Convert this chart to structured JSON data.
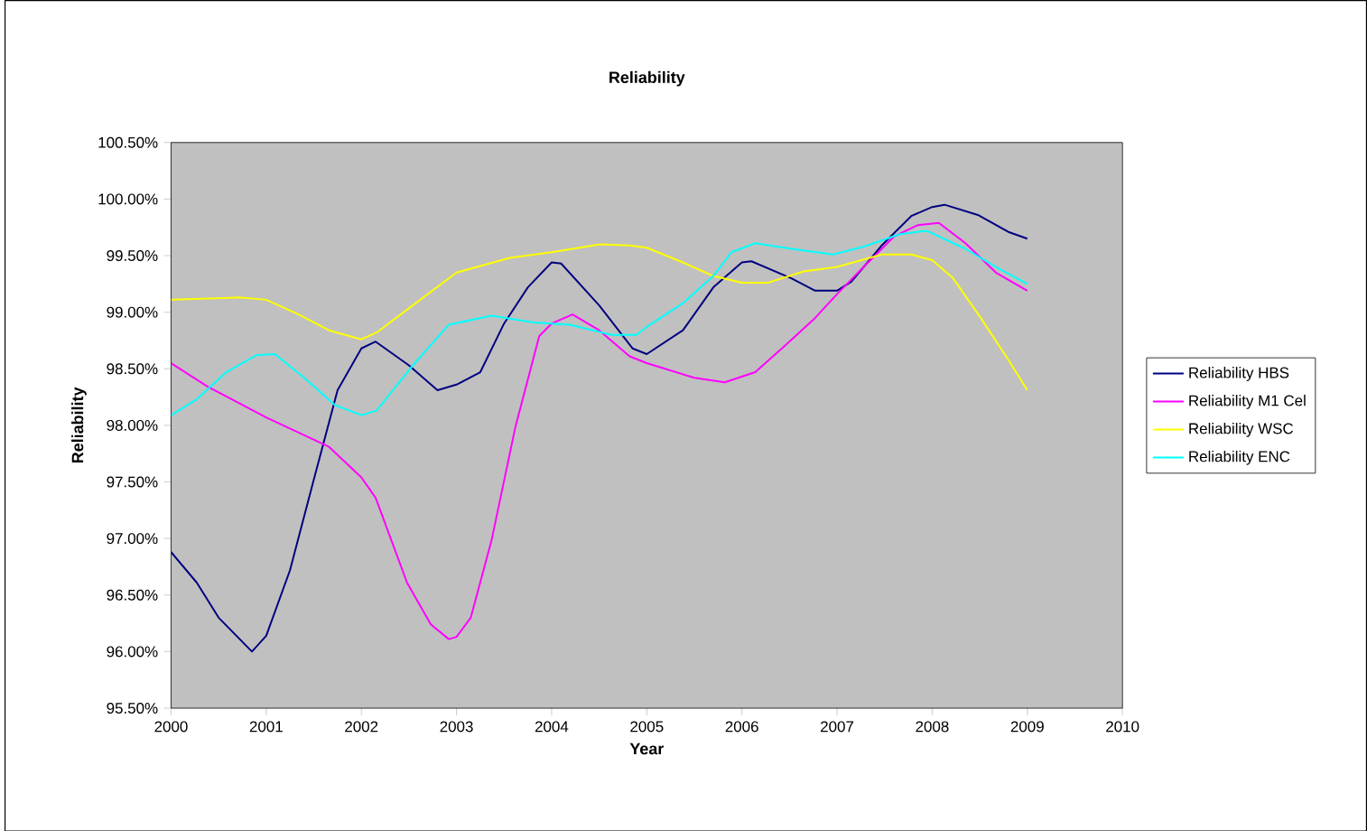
{
  "chart_data": {
    "type": "line",
    "title": "Reliability",
    "xlabel": "Year",
    "ylabel": "Reliability",
    "xlim": [
      2000,
      2010
    ],
    "xticks": [
      2000,
      2001,
      2002,
      2003,
      2004,
      2005,
      2006,
      2007,
      2008,
      2009,
      2010
    ],
    "ylim": [
      95.5,
      100.5
    ],
    "yticks": [
      {
        "value": 95.5,
        "label": "95.50%"
      },
      {
        "value": 96,
        "label": "96.00%"
      },
      {
        "value": 96.5,
        "label": "96.50%"
      },
      {
        "value": 97,
        "label": "97.00%"
      },
      {
        "value": 97.5,
        "label": "97.50%"
      },
      {
        "value": 98,
        "label": "98.00%"
      },
      {
        "value": 98.5,
        "label": "98.50%"
      },
      {
        "value": 99,
        "label": "99.00%"
      },
      {
        "value": 99.5,
        "label": "99.50%"
      },
      {
        "value": 100,
        "label": "100.00%"
      },
      {
        "value": 100.5,
        "label": "100.50%"
      }
    ],
    "grid": false,
    "legend": "right",
    "marker": "none",
    "line_style": "solid",
    "series": [
      {
        "name": "Reliability HBS",
        "color": "#000080",
        "x": [
          2000,
          2000.27,
          2000.5,
          2000.85,
          2001,
          2001.25,
          2001.5,
          2001.75,
          2002,
          2002.15,
          2002.5,
          2002.8,
          2003,
          2003.25,
          2003.5,
          2003.75,
          2004,
          2004.1,
          2004.5,
          2004.85,
          2005,
          2005.38,
          2005.7,
          2006,
          2006.1,
          2006.52,
          2006.77,
          2007,
          2007.15,
          2007.47,
          2007.78,
          2008,
          2008.13,
          2008.48,
          2008.8,
          2009
        ],
        "values": [
          96.88,
          96.61,
          96.3,
          96.0,
          96.14,
          96.72,
          97.52,
          98.31,
          98.68,
          98.74,
          98.53,
          98.31,
          98.36,
          98.47,
          98.9,
          99.22,
          99.44,
          99.43,
          99.06,
          98.68,
          98.63,
          98.84,
          99.22,
          99.44,
          99.45,
          99.3,
          99.19,
          99.19,
          99.27,
          99.59,
          99.85,
          99.93,
          99.95,
          99.86,
          99.71,
          99.65
        ]
      },
      {
        "name": "Reliability M1 Cel",
        "color": "#ff00ff",
        "x": [
          2000,
          2000.39,
          2001,
          2001.66,
          2002,
          2002.15,
          2002.48,
          2002.73,
          2002.92,
          2003,
          2003.15,
          2003.37,
          2003.62,
          2003.87,
          2004,
          2004.22,
          2004.5,
          2004.82,
          2005,
          2005.5,
          2005.82,
          2006.14,
          2006.46,
          2006.77,
          2007,
          2007.28,
          2007.6,
          2007.85,
          2008.07,
          2008.35,
          2008.67,
          2009
        ],
        "values": [
          98.55,
          98.34,
          98.07,
          97.81,
          97.54,
          97.36,
          96.61,
          96.24,
          96.11,
          96.13,
          96.3,
          96.99,
          97.99,
          98.79,
          98.9,
          98.98,
          98.84,
          98.61,
          98.55,
          98.42,
          98.38,
          98.47,
          98.71,
          98.95,
          99.16,
          99.4,
          99.67,
          99.77,
          99.79,
          99.61,
          99.35,
          99.19
        ]
      },
      {
        "name": "Reliability WSC",
        "color": "#ffff00",
        "x": [
          2000,
          2000.39,
          2000.71,
          2001,
          2001.34,
          2001.66,
          2002,
          2002.16,
          2002.54,
          2003,
          2003.56,
          2004,
          2004.51,
          2004.82,
          2005,
          2005.38,
          2005.7,
          2006,
          2006.27,
          2006.65,
          2007,
          2007.47,
          2007.78,
          2008,
          2008.22,
          2008.51,
          2008.8,
          2009
        ],
        "values": [
          99.11,
          99.12,
          99.13,
          99.11,
          98.98,
          98.84,
          98.76,
          98.82,
          99.06,
          99.35,
          99.48,
          99.53,
          99.6,
          99.59,
          99.57,
          99.44,
          99.32,
          99.26,
          99.26,
          99.36,
          99.4,
          99.51,
          99.51,
          99.46,
          99.3,
          98.95,
          98.58,
          98.31
        ]
      },
      {
        "name": "Reliability ENC",
        "color": "#00ffff",
        "x": [
          2000,
          2000.27,
          2000.58,
          2000.9,
          2001.09,
          2001.4,
          2001.72,
          2002,
          2002.16,
          2002.54,
          2002.92,
          2003.37,
          2003.81,
          2004.19,
          2004.63,
          2004.89,
          2005,
          2005.38,
          2005.7,
          2005.89,
          2006.14,
          2006.52,
          2006.96,
          2007.28,
          2007.66,
          2007.94,
          2008.35,
          2008.67,
          2009
        ],
        "values": [
          98.09,
          98.23,
          98.47,
          98.62,
          98.63,
          98.42,
          98.18,
          98.09,
          98.13,
          98.53,
          98.89,
          98.97,
          98.91,
          98.89,
          98.8,
          98.8,
          98.87,
          99.08,
          99.32,
          99.53,
          99.61,
          99.56,
          99.51,
          99.58,
          99.69,
          99.72,
          99.56,
          99.4,
          99.25
        ]
      }
    ]
  }
}
